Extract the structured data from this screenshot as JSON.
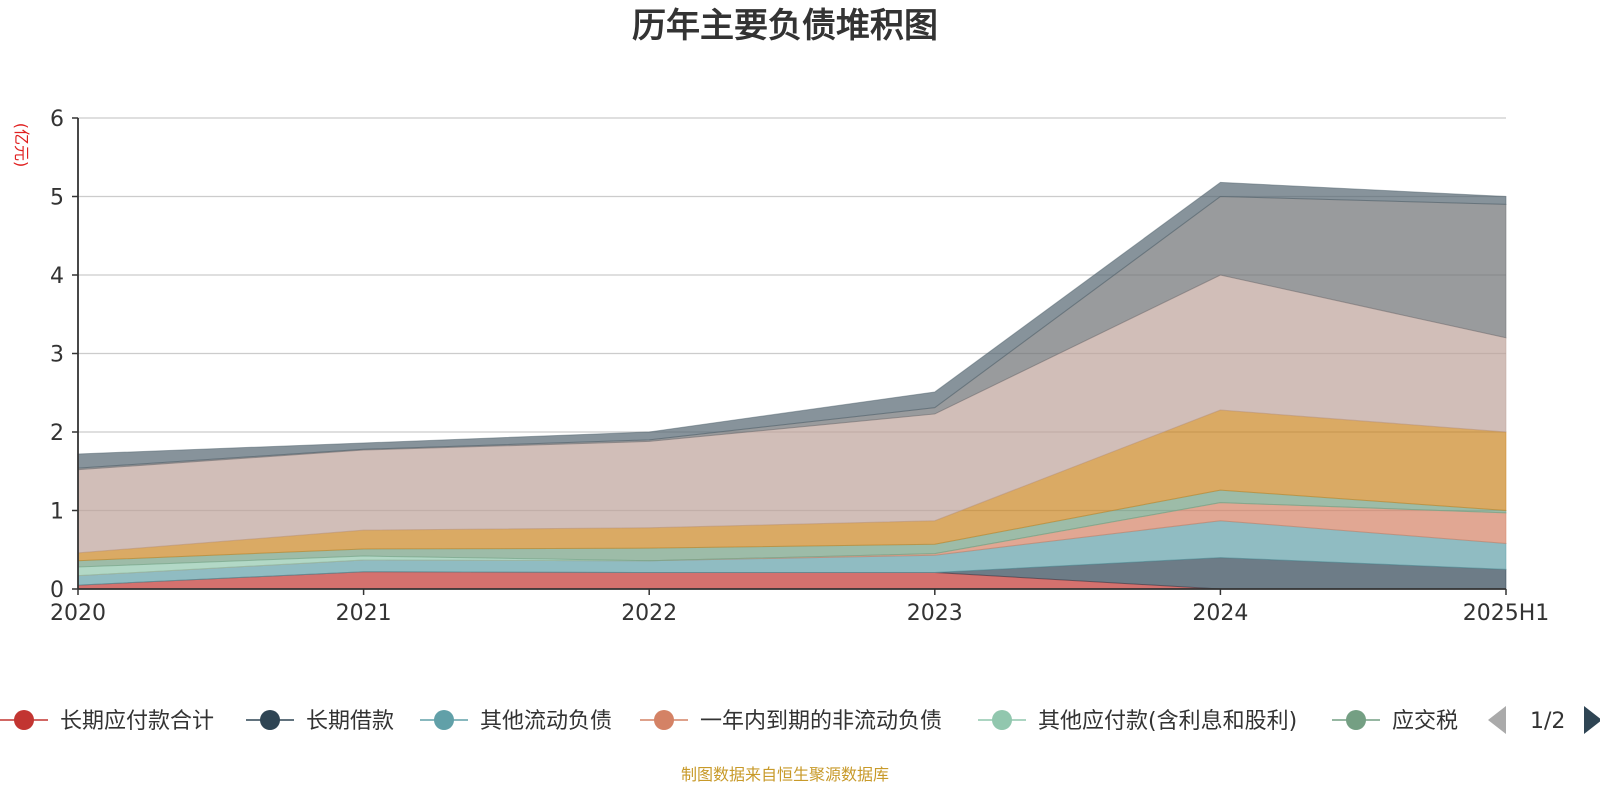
{
  "chart_data": {
    "type": "area",
    "stacked": true,
    "title": "历年主要负债堆积图",
    "unit_label": "(亿元)",
    "categories": [
      "2020",
      "2021",
      "2022",
      "2023",
      "2024",
      "2025H1"
    ],
    "ylim": [
      0,
      6
    ],
    "yticks": [
      "0",
      "1",
      "2",
      "3",
      "4",
      "5",
      "6"
    ],
    "grid": true,
    "legend_position": "bottom",
    "series": [
      {
        "name": "长期应付款合计",
        "color": "#c23531",
        "values": [
          0.05,
          0.22,
          0.21,
          0.21,
          0.0,
          0.0
        ]
      },
      {
        "name": "长期借款",
        "color": "#2f4554",
        "values": [
          0.0,
          0.0,
          0.0,
          0.0,
          0.4,
          0.25
        ]
      },
      {
        "name": "其他流动负债",
        "color": "#61a0a8",
        "values": [
          0.12,
          0.15,
          0.15,
          0.22,
          0.47,
          0.33
        ]
      },
      {
        "name": "一年内到期的非流动负债",
        "color": "#d48265",
        "values": [
          0.0,
          0.0,
          0.0,
          0.02,
          0.23,
          0.39
        ]
      },
      {
        "name": "其他应付款(含利息和股利)",
        "color": "#91c7ae",
        "values": [
          0.11,
          0.05,
          0.0,
          0.0,
          0.0,
          0.0
        ]
      },
      {
        "name": "应交税费",
        "color": "#749f83",
        "values": [
          0.08,
          0.09,
          0.16,
          0.12,
          0.16,
          0.03
        ]
      },
      {
        "name": "",
        "color": "#ca8622",
        "values": [
          0.1,
          0.24,
          0.26,
          0.3,
          1.02,
          1.0
        ]
      },
      {
        "name": "",
        "color": "#bda29a",
        "values": [
          1.06,
          1.02,
          1.1,
          1.36,
          1.72,
          1.2
        ]
      },
      {
        "name": "",
        "color": "#6e7074",
        "values": [
          0.02,
          0.01,
          0.02,
          0.08,
          1.0,
          1.7
        ]
      },
      {
        "name": "",
        "color": "#546570",
        "values": [
          0.18,
          0.08,
          0.1,
          0.2,
          0.18,
          0.1
        ]
      }
    ]
  },
  "legend": {
    "visible_items": [
      "长期应付款合计",
      "长期借款",
      "其他流动负债",
      "一年内到期的非流动负债",
      "其他应付款(含利息和股利)",
      "应交税"
    ],
    "page": "1/2"
  },
  "source_note": "制图数据来自恒生聚源数据库"
}
